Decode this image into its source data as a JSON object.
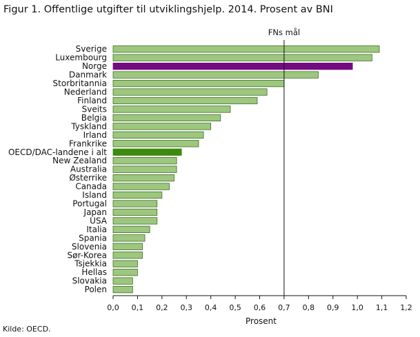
{
  "title": "Figur 1. Offentlige utgifter til utviklingshjelp. 2014. Prosent av BNI",
  "source": "Kilde: OECD.",
  "chart_data": {
    "type": "bar",
    "orientation": "horizontal",
    "title": "Figur 1. Offentlige utgifter til utviklingshjelp. 2014. Prosent av BNI",
    "xlabel": "Prosent",
    "ylabel": "",
    "xlim": [
      0,
      1.2
    ],
    "xticks": [
      "0,0",
      "0,1",
      "0,2",
      "0,3",
      "0,4",
      "0,5",
      "0,6",
      "0,7",
      "0,8",
      "0,9",
      "1,0",
      "1,1",
      "1,2"
    ],
    "grid": false,
    "reference_line": {
      "value": 0.7,
      "label": "FNs mål"
    },
    "colors": {
      "default_fill": "#9dc77e",
      "default_stroke": "#3f6b23",
      "norway_fill": "#730c80",
      "oecd_fill": "#3e8a0e",
      "reference_line": "#111111"
    },
    "highlight": {
      "Norge": "norway_fill",
      "OECD/DAC-landene i alt": "oecd_fill"
    },
    "categories": [
      "Sverige",
      "Luxembourg",
      "Norge",
      "Danmark",
      "Storbritannia",
      "Nederland",
      "Finland",
      "Sveits",
      "Belgia",
      "Tyskland",
      "Irland",
      "Frankrike",
      "OECD/DAC-landene i alt",
      "New Zealand",
      "Australia",
      "Østerrike",
      "Canada",
      "Island",
      "Portugal",
      "Japan",
      "USA",
      "Italia",
      "Spania",
      "Slovenia",
      "Sør-Korea",
      "Tsjekkia",
      "Hellas",
      "Slovakia",
      "Polen"
    ],
    "values": [
      1.09,
      1.06,
      0.98,
      0.84,
      0.7,
      0.63,
      0.59,
      0.48,
      0.44,
      0.4,
      0.37,
      0.35,
      0.28,
      0.26,
      0.26,
      0.25,
      0.23,
      0.2,
      0.18,
      0.18,
      0.18,
      0.15,
      0.13,
      0.12,
      0.12,
      0.1,
      0.1,
      0.08,
      0.08
    ]
  }
}
